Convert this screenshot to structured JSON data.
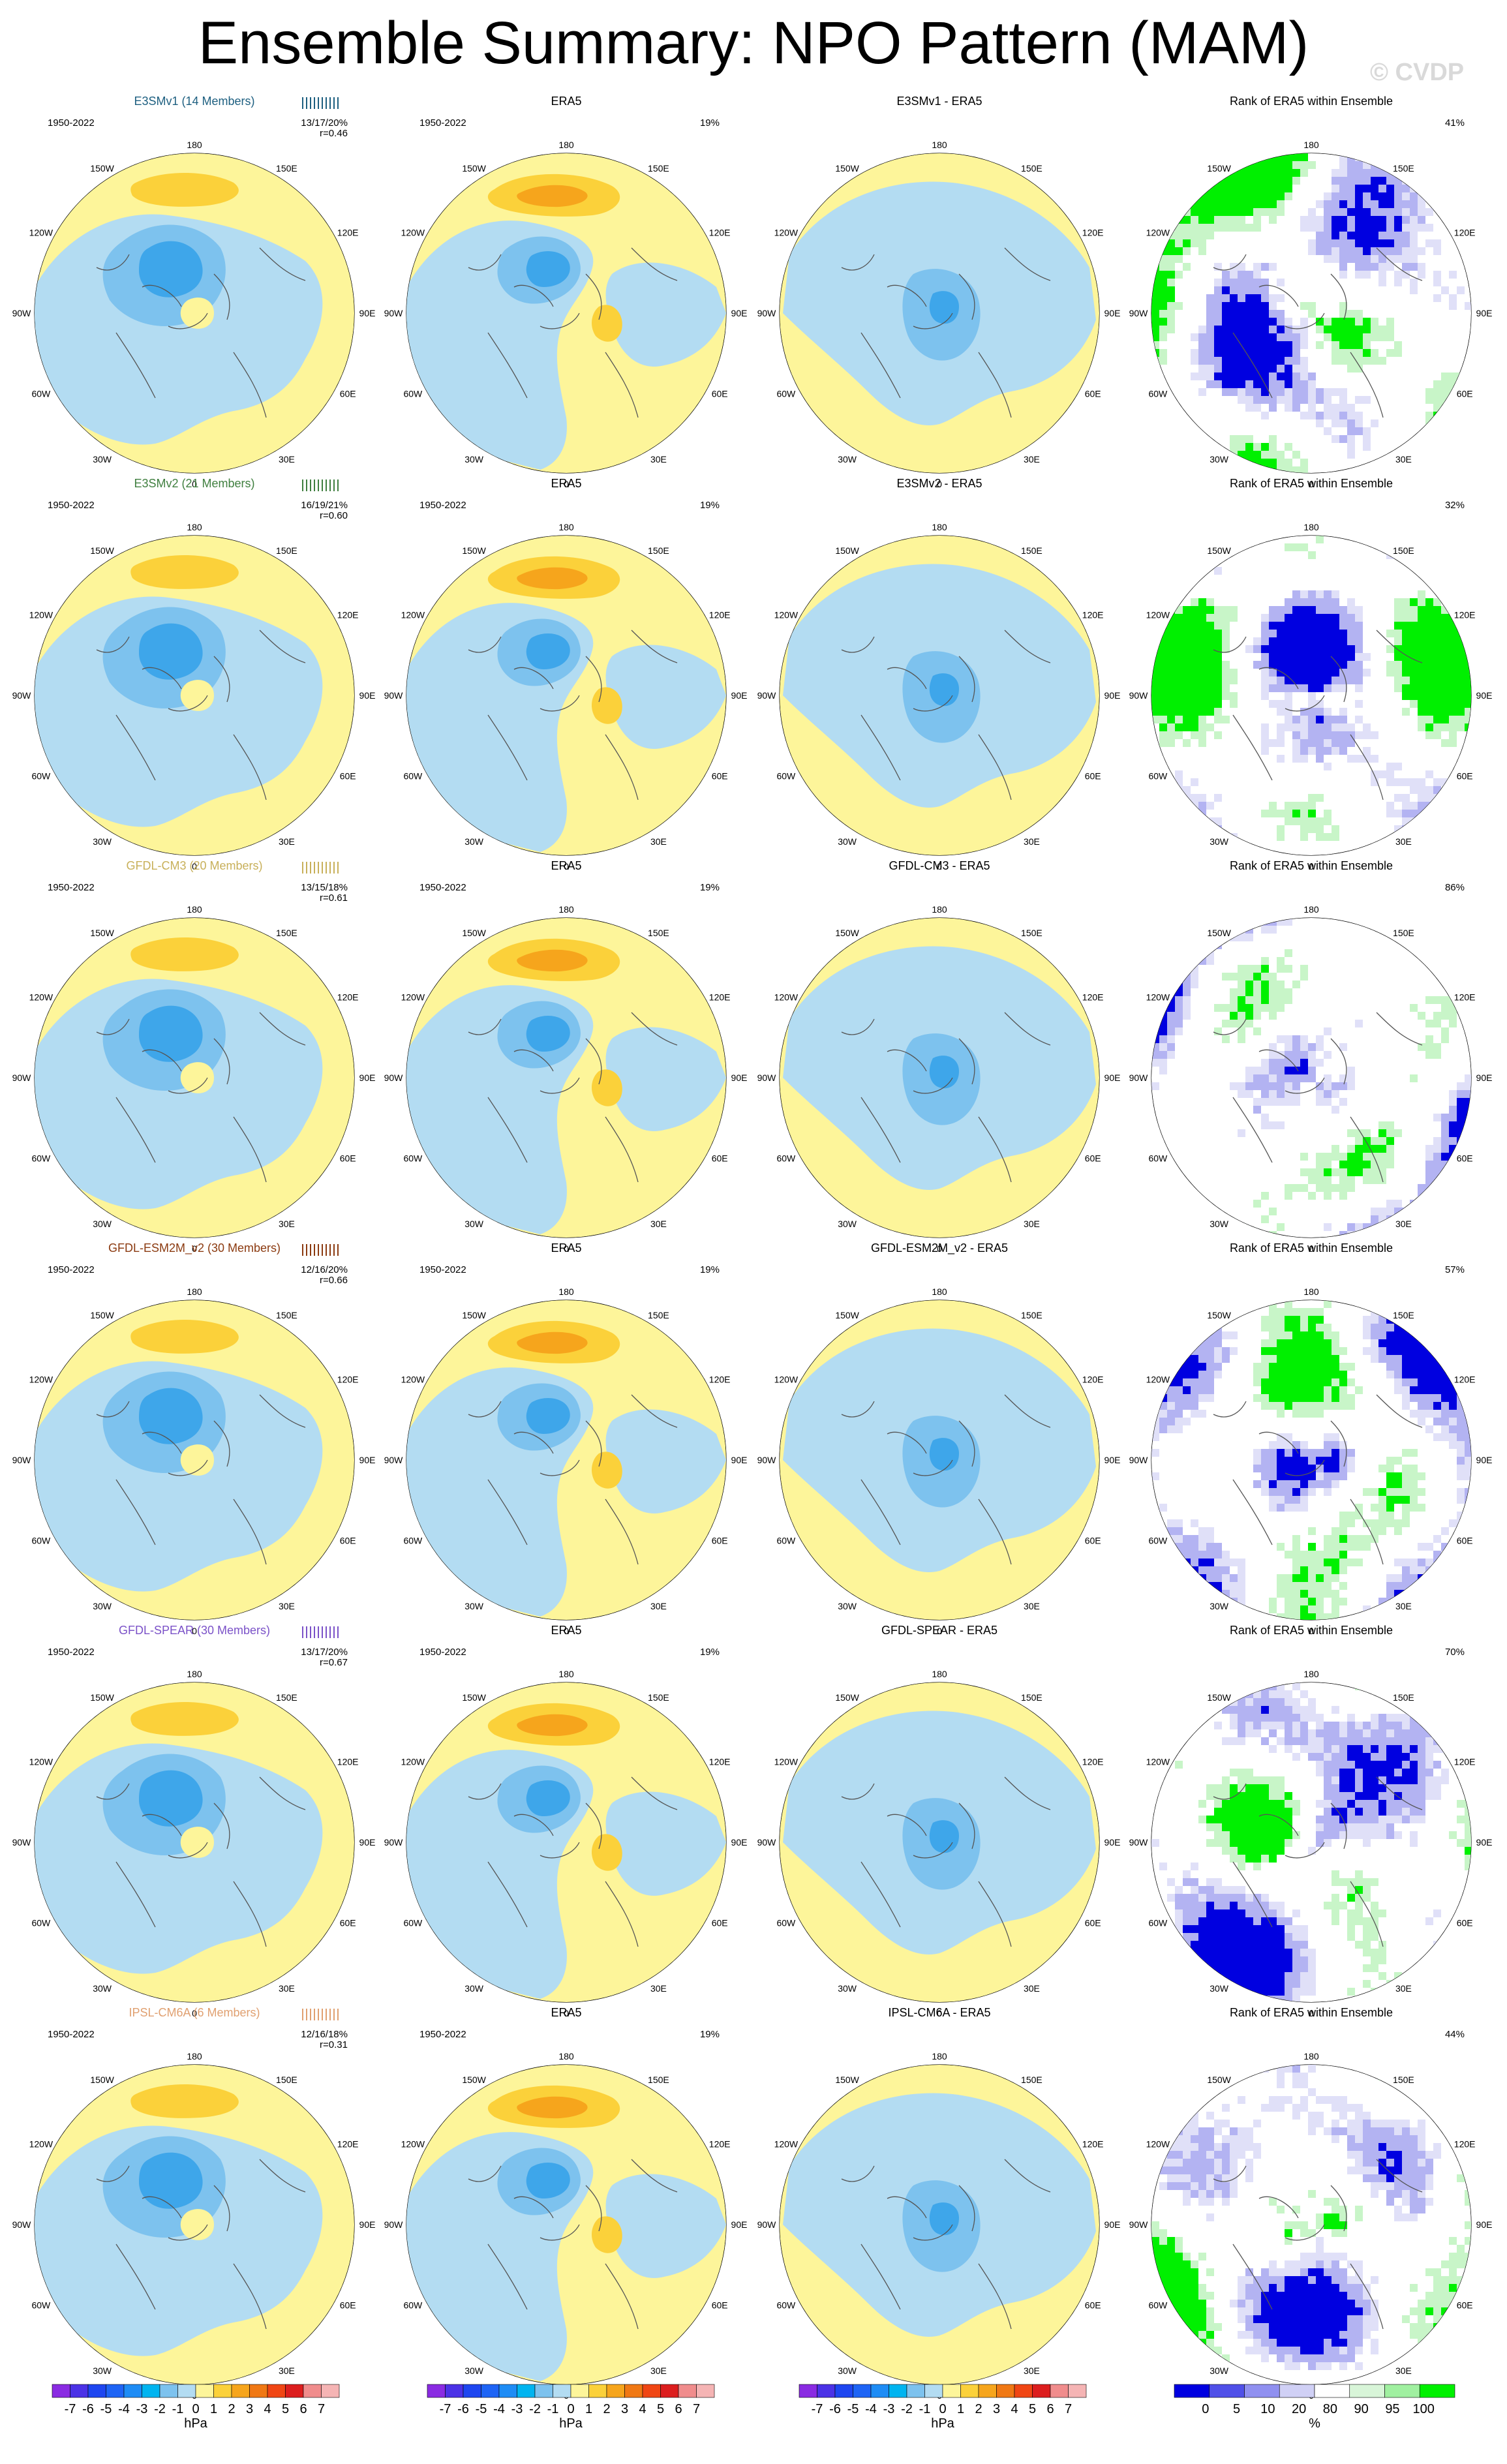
{
  "title": "Ensemble Summary: NPO Pattern (MAM)",
  "watermark": "© CVDP",
  "period": "1950-2022",
  "lon_labels": {
    "top": "180",
    "top_left": "150W",
    "top_right": "150E",
    "upper_left": "120W",
    "upper_right": "120E",
    "left": "90W",
    "right": "90E",
    "lower_left": "60W",
    "lower_right": "60E",
    "bottom_left": "30W",
    "bottom_right": "30E",
    "bottom": "0"
  },
  "era5_title": "ERA5",
  "era5_pct": "19%",
  "rank_title": "Rank of ERA5 within Ensemble",
  "colors": {
    "pos1": "#fdf59a",
    "pos2": "#fbd13a",
    "pos3": "#f6a51c",
    "neg1": "#b3dcf2",
    "neg2": "#7dc2ee",
    "neg3": "#3ea6ea",
    "neg4": "#1a87e0",
    "rank_low": "#0000e0",
    "rank_mid": "#b3b3f2",
    "rank_pale": "#e0e0f8",
    "rank_high": "#00f000",
    "rank_hpale": "#c8f5c8"
  },
  "rows": [
    {
      "model": "E3SMv1 (14 Members)",
      "model_color": "#1d5f80",
      "stats": "13/17/20%",
      "r": "r=0.46",
      "diff_title": "E3SMv1 - ERA5",
      "rank_pct": "41%"
    },
    {
      "model": "E3SMv2 (21 Members)",
      "model_color": "#3f7f3f",
      "stats": "16/19/21%",
      "r": "r=0.60",
      "diff_title": "E3SMv2 - ERA5",
      "rank_pct": "32%"
    },
    {
      "model": "GFDL-CM3 (20 Members)",
      "model_color": "#c8b05a",
      "stats": "13/15/18%",
      "r": "r=0.61",
      "diff_title": "GFDL-CM3 - ERA5",
      "rank_pct": "86%"
    },
    {
      "model": "GFDL-ESM2M_v2 (30 Members)",
      "model_color": "#8b3a10",
      "stats": "12/16/20%",
      "r": "r=0.66",
      "diff_title": "GFDL-ESM2M_v2 - ERA5",
      "rank_pct": "57%"
    },
    {
      "model": "GFDL-SPEAR (30 Members)",
      "model_color": "#7b52c8",
      "stats": "13/17/20%",
      "r": "r=0.67",
      "diff_title": "GFDL-SPEAR - ERA5",
      "rank_pct": "70%"
    },
    {
      "model": "IPSL-CM6A (6 Members)",
      "model_color": "#e0a070",
      "stats": "12/16/18%",
      "r": "r=0.31",
      "diff_title": "IPSL-CM6A - ERA5",
      "rank_pct": "44%"
    }
  ],
  "colorbar_hpa": {
    "ticks": [
      "-7",
      "-6",
      "-5",
      "-4",
      "-3",
      "-2",
      "-1",
      "0",
      "1",
      "2",
      "3",
      "4",
      "5",
      "6",
      "7"
    ],
    "colors": [
      "#8a2be2",
      "#4b32e6",
      "#1e46f0",
      "#1e64f5",
      "#1e8cf5",
      "#00b4f0",
      "#7dc2ee",
      "#b3dcf2",
      "#fdf59a",
      "#fbd13a",
      "#f6a51c",
      "#f07814",
      "#f04614",
      "#dc1e1e",
      "#f08c8c",
      "#f5b4b4"
    ],
    "unit": "hPa"
  },
  "colorbar_pct": {
    "ticks": [
      "0",
      "5",
      "10",
      "20",
      "80",
      "90",
      "95",
      "100"
    ],
    "colors": [
      "#0000e0",
      "#5050e8",
      "#9090f0",
      "#d0d0f5",
      "#ffffff",
      "#d8f5d8",
      "#a0f0a0",
      "#00f000"
    ],
    "unit": "%"
  }
}
